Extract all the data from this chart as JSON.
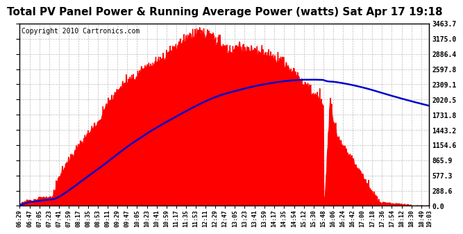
{
  "title": "Total PV Panel Power & Running Average Power (watts) Sat Apr 17 19:18",
  "copyright": "Copyright 2010 Cartronics.com",
  "y_ticks": [
    0.0,
    288.6,
    577.3,
    865.9,
    1154.6,
    1443.2,
    1731.8,
    2020.5,
    2309.1,
    2597.8,
    2886.4,
    3175.0,
    3463.7
  ],
  "y_max": 3463.7,
  "x_labels": [
    "06:29",
    "06:47",
    "07:05",
    "07:23",
    "07:41",
    "07:59",
    "08:17",
    "08:35",
    "08:53",
    "09:11",
    "09:29",
    "09:47",
    "10:05",
    "10:23",
    "10:41",
    "10:59",
    "11:17",
    "11:35",
    "11:53",
    "12:11",
    "12:29",
    "12:47",
    "13:05",
    "13:23",
    "13:41",
    "13:59",
    "14:17",
    "14:35",
    "14:54",
    "15:12",
    "15:30",
    "15:48",
    "16:06",
    "16:24",
    "16:42",
    "17:00",
    "17:18",
    "17:36",
    "17:54",
    "18:12",
    "18:30",
    "18:49",
    "19:03"
  ],
  "fill_color": "#FF0000",
  "line_color": "#0000CC",
  "background_color": "#FFFFFF",
  "grid_color": "#AAAAAA",
  "title_fontsize": 11,
  "copyright_fontsize": 7
}
